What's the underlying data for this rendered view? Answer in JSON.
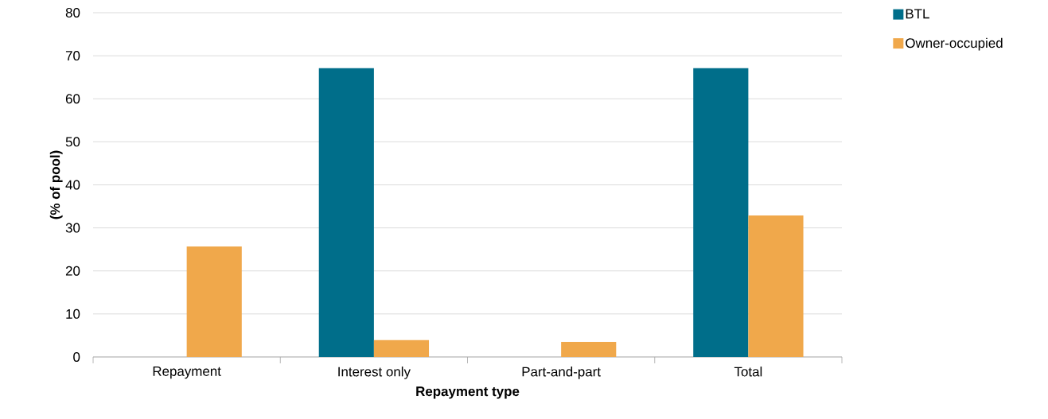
{
  "chart_data": {
    "type": "bar",
    "xlabel": "Repayment type",
    "ylabel": "(% of pool)",
    "categories": [
      "Repayment",
      "Interest only",
      "Part-and-part",
      "Total"
    ],
    "series": [
      {
        "name": "BTL",
        "color": "#006e8a",
        "values": [
          0,
          67.1,
          0,
          67.1
        ]
      },
      {
        "name": "Owner-occupied",
        "color": "#f0a84b",
        "values": [
          25.7,
          3.9,
          3.5,
          32.9
        ]
      }
    ],
    "ylim": [
      0,
      80
    ],
    "yticks": [
      0,
      10,
      20,
      30,
      40,
      50,
      60,
      70,
      80
    ],
    "grid": "y",
    "legend": "top right"
  }
}
